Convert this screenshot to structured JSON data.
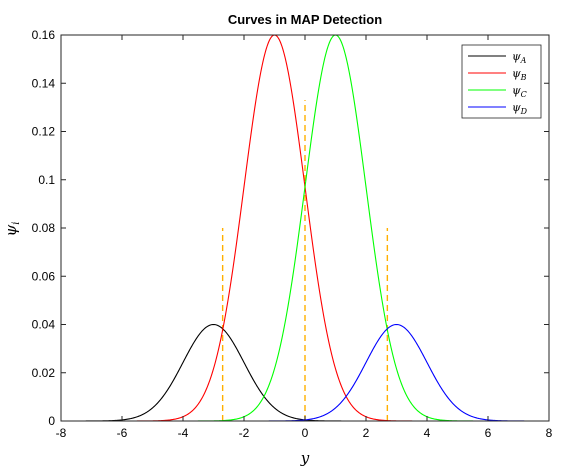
{
  "chart_data": {
    "type": "line",
    "title": "Curves in MAP Detection",
    "xlabel": "y",
    "ylabel": "ψ",
    "ylabel_sub": "i",
    "xlim": [
      -8,
      8
    ],
    "ylim": [
      0,
      0.16
    ],
    "x_ticks": [
      -8,
      -6,
      -4,
      -2,
      0,
      2,
      4,
      6,
      8
    ],
    "y_ticks": [
      0,
      0.02,
      0.04,
      0.06,
      0.08,
      0.1,
      0.12,
      0.14,
      0.16
    ],
    "x_tick_labels": [
      "-8",
      "-6",
      "-4",
      "-2",
      "0",
      "2",
      "4",
      "6",
      "8"
    ],
    "y_tick_labels": [
      "0",
      "0.02",
      "0.04",
      "0.06",
      "0.08",
      "0.1",
      "0.12",
      "0.14",
      "0.16"
    ],
    "grid": false,
    "legend_position": "top-right",
    "series": [
      {
        "name": "ψ",
        "sub": "A",
        "color": "#000000",
        "mean": -3,
        "peak": 0.04,
        "sigma": 1
      },
      {
        "name": "ψ",
        "sub": "B",
        "color": "#ff0000",
        "mean": -1,
        "peak": 0.16,
        "sigma": 1
      },
      {
        "name": "ψ",
        "sub": "C",
        "color": "#00ff00",
        "mean": 1,
        "peak": 0.16,
        "sigma": 1
      },
      {
        "name": "ψ",
        "sub": "D",
        "color": "#0000ff",
        "mean": 3,
        "peak": 0.04,
        "sigma": 1
      }
    ],
    "thresholds": {
      "color": "#ffb000",
      "lines": [
        {
          "x": -2.7,
          "y_top": 0.08
        },
        {
          "x": 0,
          "y_top": 0.133
        },
        {
          "x": 2.7,
          "y_top": 0.08
        }
      ]
    }
  }
}
